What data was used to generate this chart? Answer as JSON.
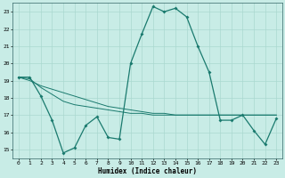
{
  "xlabel": "Humidex (Indice chaleur)",
  "xlim": [
    -0.5,
    23.5
  ],
  "ylim": [
    14.5,
    23.5
  ],
  "yticks": [
    15,
    16,
    17,
    18,
    19,
    20,
    21,
    22,
    23
  ],
  "xticks": [
    0,
    1,
    2,
    3,
    4,
    5,
    6,
    7,
    8,
    9,
    10,
    11,
    12,
    13,
    14,
    15,
    16,
    17,
    18,
    19,
    20,
    21,
    22,
    23
  ],
  "bg_color": "#c8ece6",
  "grid_color": "#aad8d0",
  "line_color": "#1a7a6e",
  "series1_x": [
    0,
    1,
    2,
    3,
    4,
    5,
    6,
    7,
    8,
    9,
    10,
    11,
    12,
    13,
    14,
    15,
    16,
    17,
    18,
    19,
    20,
    21,
    22,
    23
  ],
  "series1_y": [
    19.2,
    19.2,
    18.1,
    16.7,
    14.8,
    15.1,
    16.4,
    16.9,
    15.7,
    15.6,
    20.0,
    21.7,
    23.3,
    23.0,
    23.2,
    22.7,
    21.0,
    19.5,
    16.7,
    16.7,
    17.0,
    16.1,
    15.3,
    16.8
  ],
  "series2_x": [
    0,
    1,
    2,
    3,
    4,
    5,
    6,
    7,
    8,
    9,
    10,
    11,
    12,
    13,
    14,
    15,
    16,
    17,
    18,
    19,
    20,
    21,
    22,
    23
  ],
  "series2_y": [
    19.2,
    19.0,
    18.7,
    18.5,
    18.3,
    18.1,
    17.9,
    17.7,
    17.5,
    17.4,
    17.3,
    17.2,
    17.1,
    17.1,
    17.0,
    17.0,
    17.0,
    17.0,
    17.0,
    17.0,
    17.0,
    17.0,
    17.0,
    17.0
  ],
  "series3_x": [
    0,
    1,
    2,
    3,
    4,
    5,
    6,
    7,
    8,
    9,
    10,
    11,
    12,
    13,
    14,
    15,
    16,
    17,
    18,
    19,
    20,
    21,
    22,
    23
  ],
  "series3_y": [
    19.2,
    19.1,
    18.6,
    18.2,
    17.8,
    17.6,
    17.5,
    17.4,
    17.3,
    17.2,
    17.1,
    17.1,
    17.0,
    17.0,
    17.0,
    17.0,
    17.0,
    17.0,
    17.0,
    17.0,
    17.0,
    17.0,
    17.0,
    17.0
  ]
}
